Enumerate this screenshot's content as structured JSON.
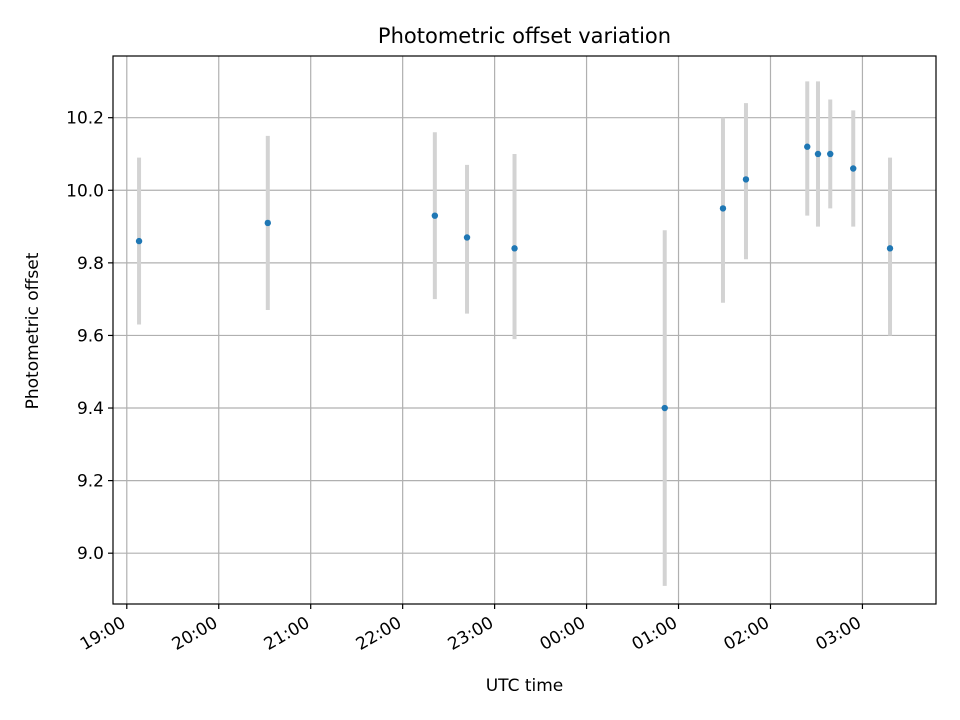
{
  "chart_data": {
    "type": "scatter",
    "title": "Photometric offset variation",
    "xlabel": "UTC time",
    "ylabel": "Photometric offset",
    "x_axis": {
      "type": "time",
      "start": "18:51",
      "end": "03:48",
      "ticks": [
        "19:00",
        "20:00",
        "21:00",
        "22:00",
        "23:00",
        "00:00",
        "01:00",
        "02:00",
        "03:00"
      ]
    },
    "ylim": [
      8.86,
      10.37
    ],
    "yticks": [
      "9.0",
      "9.2",
      "9.4",
      "9.6",
      "9.8",
      "10.0",
      "10.2"
    ],
    "grid": true,
    "colors": {
      "point": "#1f77b4",
      "errorbar": "#d3d3d3",
      "grid": "#b0b0b0"
    },
    "points": [
      {
        "x": "19:08",
        "y": 9.86,
        "ylow": 9.63,
        "yhigh": 10.09
      },
      {
        "x": "20:32",
        "y": 9.91,
        "ylow": 9.67,
        "yhigh": 10.15
      },
      {
        "x": "22:21",
        "y": 9.93,
        "ylow": 9.7,
        "yhigh": 10.16
      },
      {
        "x": "22:42",
        "y": 9.87,
        "ylow": 9.66,
        "yhigh": 10.07
      },
      {
        "x": "23:13",
        "y": 9.84,
        "ylow": 9.59,
        "yhigh": 10.1
      },
      {
        "x": "00:51",
        "y": 9.4,
        "ylow": 8.91,
        "yhigh": 9.89
      },
      {
        "x": "01:29",
        "y": 9.95,
        "ylow": 9.69,
        "yhigh": 10.2
      },
      {
        "x": "01:44",
        "y": 10.03,
        "ylow": 9.81,
        "yhigh": 10.24
      },
      {
        "x": "02:24",
        "y": 10.12,
        "ylow": 9.93,
        "yhigh": 10.3
      },
      {
        "x": "02:31",
        "y": 10.1,
        "ylow": 9.9,
        "yhigh": 10.3
      },
      {
        "x": "02:39",
        "y": 10.1,
        "ylow": 9.95,
        "yhigh": 10.25
      },
      {
        "x": "02:54",
        "y": 10.06,
        "ylow": 9.9,
        "yhigh": 10.22
      },
      {
        "x": "03:18",
        "y": 9.84,
        "ylow": 9.6,
        "yhigh": 10.09
      }
    ]
  }
}
